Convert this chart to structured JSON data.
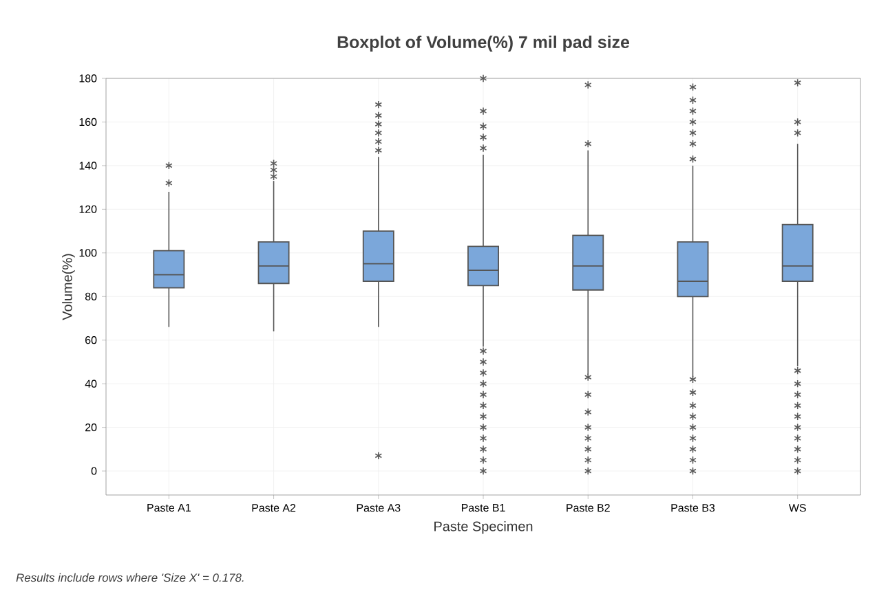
{
  "chart_data": {
    "type": "box",
    "title": "Boxplot of Volume(%) 7 mil pad size",
    "xlabel": "Paste Specimen",
    "ylabel": "Volume(%)",
    "categories": [
      "Paste A1",
      "Paste A2",
      "Paste A3",
      "Paste B1",
      "Paste B2",
      "Paste B3",
      "WS"
    ],
    "color": "#7ba7da",
    "marker": "star",
    "grid": true,
    "ylim": [
      -11,
      180
    ],
    "yticks": [
      0,
      20,
      40,
      60,
      80,
      100,
      120,
      140,
      160,
      180
    ],
    "boxes": [
      {
        "low": 66,
        "q1": 84,
        "median": 90,
        "q3": 101,
        "high": 128,
        "outliers": [
          132,
          140
        ]
      },
      {
        "low": 64,
        "q1": 86,
        "median": 94,
        "q3": 105,
        "high": 133,
        "outliers": [
          135,
          138,
          141
        ]
      },
      {
        "low": 66,
        "q1": 87,
        "median": 95,
        "q3": 110,
        "high": 144,
        "outliers": [
          7,
          147,
          151,
          155,
          159,
          163,
          168
        ]
      },
      {
        "low": 57,
        "q1": 85,
        "median": 92,
        "q3": 103,
        "high": 145,
        "outliers": [
          0,
          5,
          10,
          15,
          20,
          25,
          30,
          35,
          40,
          45,
          50,
          55,
          148,
          153,
          158,
          165,
          180
        ]
      },
      {
        "low": 44,
        "q1": 83,
        "median": 94,
        "q3": 108,
        "high": 147,
        "outliers": [
          0,
          5,
          10,
          15,
          20,
          27,
          35,
          43,
          150,
          177
        ]
      },
      {
        "low": 43,
        "q1": 80,
        "median": 87,
        "q3": 105,
        "high": 140,
        "outliers": [
          0,
          5,
          10,
          15,
          20,
          25,
          30,
          36,
          42,
          143,
          150,
          155,
          160,
          165,
          170,
          176
        ]
      },
      {
        "low": 48,
        "q1": 87,
        "median": 94,
        "q3": 113,
        "high": 150,
        "outliers": [
          0,
          5,
          10,
          15,
          20,
          25,
          30,
          35,
          40,
          46,
          155,
          160,
          178
        ]
      }
    ],
    "annotations": [
      "Results include rows where  'Size X'  = 0.178."
    ]
  }
}
